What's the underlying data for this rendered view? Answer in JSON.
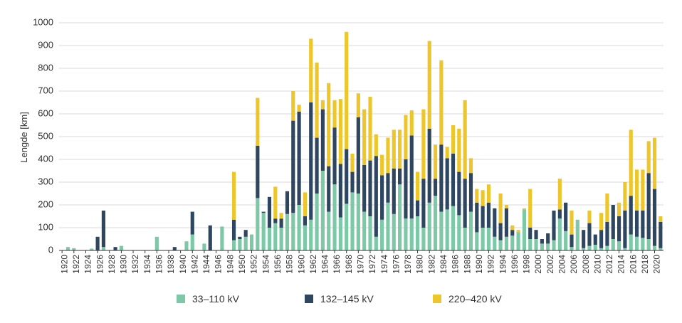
{
  "chart_data": {
    "type": "bar",
    "stacked": true,
    "ylabel": "Lengde [km]",
    "ylim": [
      0,
      1000
    ],
    "yticks": [
      "0",
      "100",
      "200",
      "300",
      "400",
      "500",
      "600",
      "700",
      "800",
      "900",
      "1000"
    ],
    "grid": true,
    "legend_position": "bottom",
    "colors": {
      "s1": "#7dc8a6",
      "s2": "#2f4660",
      "s3": "#ecc62a",
      "grid": "#d9d9d9",
      "axis": "#333333"
    },
    "categories": [
      "1920",
      "1921",
      "1922",
      "1923",
      "1924",
      "1925",
      "1926",
      "1927",
      "1928",
      "1929",
      "1930",
      "1931",
      "1932",
      "1933",
      "1934",
      "1935",
      "1936",
      "1937",
      "1938",
      "1939",
      "1940",
      "1941",
      "1942",
      "1943",
      "1944",
      "1945",
      "1946",
      "1947",
      "1948",
      "1949",
      "1950",
      "1951",
      "1952",
      "1953",
      "1954",
      "1955",
      "1956",
      "1957",
      "1958",
      "1959",
      "1960",
      "1961",
      "1962",
      "1963",
      "1964",
      "1965",
      "1966",
      "1967",
      "1968",
      "1969",
      "1970",
      "1971",
      "1972",
      "1973",
      "1974",
      "1975",
      "1976",
      "1977",
      "1978",
      "1979",
      "1980",
      "1981",
      "1982",
      "1983",
      "1984",
      "1985",
      "1986",
      "1987",
      "1988",
      "1989",
      "1990",
      "1991",
      "1992",
      "1993",
      "1994",
      "1995",
      "1996",
      "1997",
      "1998",
      "1999",
      "2000",
      "2001",
      "2002",
      "2003",
      "2004",
      "2005",
      "2006",
      "2007",
      "2008",
      "2009",
      "2010",
      "2011",
      "2012",
      "2013",
      "2014",
      "2015",
      "2016",
      "2017",
      "2018",
      "2019",
      "2020",
      "2021"
    ],
    "x_tick_labels": [
      "1920",
      "1922",
      "1924",
      "1926",
      "1928",
      "1930",
      "1932",
      "1934",
      "1936",
      "1938",
      "1940",
      "1942",
      "1944",
      "1946",
      "1948",
      "1950",
      "1952",
      "1954",
      "1956",
      "1958",
      "1960",
      "1962",
      "1964",
      "1966",
      "1968",
      "1970",
      "1972",
      "1974",
      "1976",
      "1978",
      "1980",
      "1982",
      "1984",
      "1986",
      "1988",
      "1990",
      "1992",
      "1994",
      "1996",
      "1998",
      "2000",
      "2002",
      "2004",
      "2006",
      "2008",
      "2010",
      "2012",
      "2014",
      "2016",
      "2018",
      "2020"
    ],
    "series": [
      {
        "name": "33–110 kV",
        "values": [
          0,
          15,
          10,
          0,
          0,
          8,
          0,
          15,
          0,
          0,
          20,
          0,
          0,
          0,
          0,
          0,
          60,
          0,
          0,
          0,
          0,
          40,
          70,
          0,
          30,
          0,
          0,
          105,
          0,
          45,
          50,
          60,
          70,
          230,
          165,
          100,
          120,
          100,
          160,
          165,
          200,
          110,
          135,
          250,
          350,
          170,
          290,
          145,
          205,
          255,
          250,
          170,
          150,
          60,
          135,
          210,
          160,
          290,
          140,
          140,
          150,
          100,
          210,
          240,
          170,
          180,
          195,
          155,
          100,
          170,
          80,
          100,
          100,
          60,
          45,
          60,
          65,
          80,
          180,
          50,
          50,
          30,
          30,
          45,
          140,
          85,
          15,
          135,
          10,
          20,
          25,
          10,
          20,
          50,
          40,
          10,
          70,
          60,
          55,
          50,
          20,
          10
        ]
      },
      {
        "name": "132–145 kV",
        "values": [
          0,
          0,
          0,
          0,
          0,
          0,
          60,
          160,
          0,
          15,
          0,
          0,
          0,
          0,
          0,
          0,
          0,
          0,
          0,
          15,
          0,
          0,
          100,
          0,
          0,
          110,
          0,
          0,
          0,
          90,
          10,
          30,
          0,
          230,
          5,
          135,
          20,
          40,
          100,
          405,
          410,
          40,
          515,
          245,
          270,
          200,
          250,
          235,
          240,
          90,
          335,
          205,
          245,
          355,
          195,
          130,
          200,
          70,
          260,
          365,
          70,
          215,
          325,
          75,
          295,
          225,
          230,
          190,
          215,
          170,
          130,
          95,
          110,
          125,
          75,
          125,
          25,
          0,
          0,
          50,
          40,
          20,
          45,
          130,
          40,
          125,
          55,
          0,
          80,
          100,
          45,
          80,
          105,
          150,
          110,
          165,
          170,
          115,
          120,
          290,
          250,
          115
        ]
      },
      {
        "name": "220–420 kV",
        "values": [
          0,
          0,
          0,
          0,
          0,
          0,
          0,
          0,
          0,
          0,
          0,
          0,
          0,
          0,
          0,
          0,
          0,
          0,
          0,
          0,
          0,
          0,
          0,
          0,
          0,
          0,
          0,
          0,
          0,
          210,
          0,
          0,
          0,
          210,
          0,
          0,
          140,
          25,
          0,
          130,
          30,
          105,
          280,
          330,
          40,
          365,
          120,
          285,
          515,
          80,
          105,
          245,
          280,
          95,
          90,
          155,
          170,
          170,
          195,
          110,
          125,
          305,
          385,
          150,
          370,
          50,
          125,
          190,
          345,
          65,
          60,
          70,
          80,
          0,
          130,
          15,
          20,
          10,
          5,
          170,
          0,
          0,
          0,
          0,
          135,
          0,
          105,
          0,
          0,
          55,
          0,
          75,
          125,
          0,
          60,
          125,
          290,
          180,
          180,
          140,
          225,
          25
        ]
      }
    ]
  }
}
